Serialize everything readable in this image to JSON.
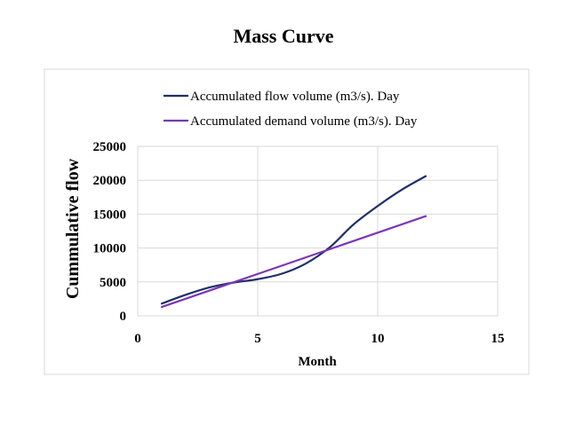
{
  "chart_data": {
    "type": "line",
    "title": "Mass Curve",
    "xlabel": "Month",
    "ylabel": "Cummulative flow",
    "xlim": [
      0,
      15
    ],
    "ylim": [
      0,
      25000
    ],
    "xticks": [
      "0",
      "5",
      "10",
      "15"
    ],
    "yticks": [
      "0",
      "5000",
      "10000",
      "15000",
      "20000",
      "25000"
    ],
    "grid": true,
    "legend_position": "top",
    "series": [
      {
        "name": "Accumulated flow volume (m3/s). Day",
        "color": "#1f2f6b",
        "x": [
          1,
          2,
          3,
          4,
          5,
          6,
          7,
          8,
          9,
          10,
          11,
          12
        ],
        "y": [
          1800,
          3100,
          4200,
          4900,
          5400,
          6200,
          7700,
          10100,
          13500,
          16200,
          18600,
          20600
        ]
      },
      {
        "name": "Accumulated demand volume (m3/s). Day",
        "color": "#7b35b8",
        "x": [
          1,
          12
        ],
        "y": [
          1300,
          14700
        ]
      }
    ]
  }
}
